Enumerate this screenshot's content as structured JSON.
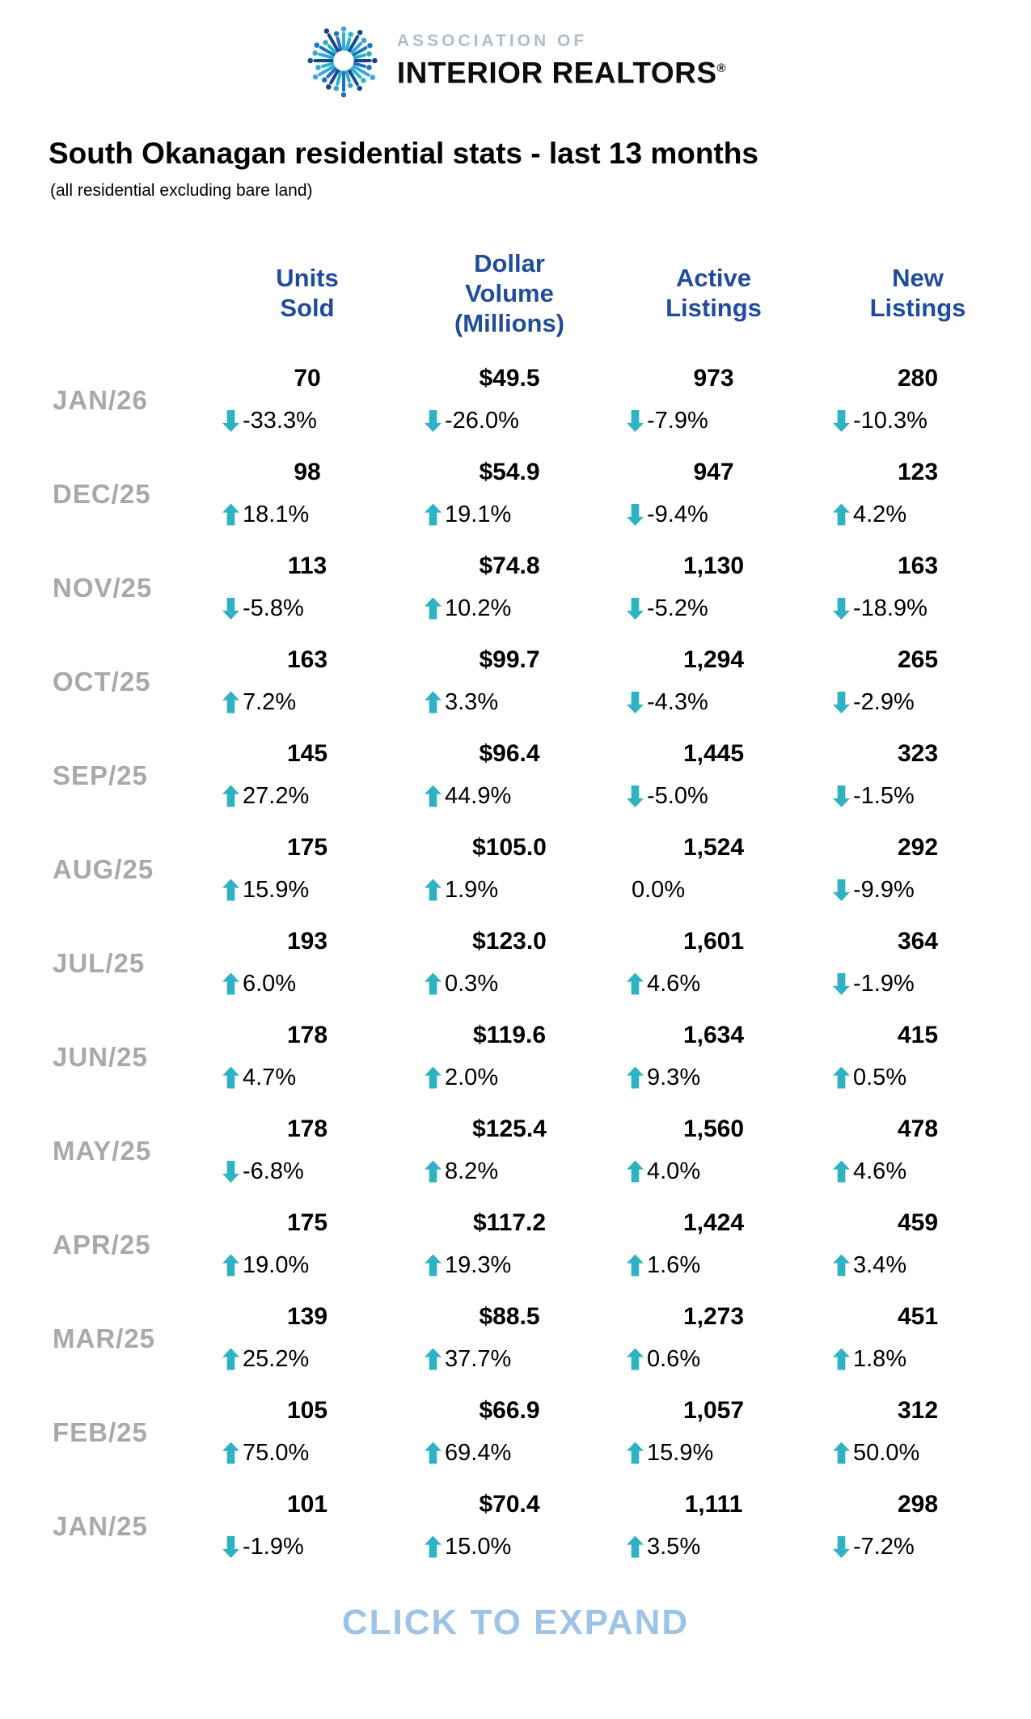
{
  "logo": {
    "association_of": "ASSOCIATION OF",
    "brand": "INTERIOR REALTORS",
    "reg_mark": "®"
  },
  "title": "South Okanagan residential stats - last 13 months",
  "subtitle": "(all residential excluding bare land)",
  "table": {
    "columns": [
      "Units Sold",
      "Dollar Volume (Millions)",
      "Active Listings",
      "New Listings"
    ],
    "rows": [
      {
        "month": "JAN/26",
        "units": {
          "value": "70",
          "dir": "down",
          "change": "-33.3%"
        },
        "volume": {
          "value": "$49.5",
          "dir": "down",
          "change": "-26.0%"
        },
        "active": {
          "value": "973",
          "dir": "down",
          "change": "-7.9%"
        },
        "new": {
          "value": "280",
          "dir": "down",
          "change": "-10.3%"
        }
      },
      {
        "month": "DEC/25",
        "units": {
          "value": "98",
          "dir": "up",
          "change": "18.1%"
        },
        "volume": {
          "value": "$54.9",
          "dir": "up",
          "change": "19.1%"
        },
        "active": {
          "value": "947",
          "dir": "down",
          "change": "-9.4%"
        },
        "new": {
          "value": "123",
          "dir": "up",
          "change": "4.2%"
        }
      },
      {
        "month": "NOV/25",
        "units": {
          "value": "113",
          "dir": "down",
          "change": "-5.8%"
        },
        "volume": {
          "value": "$74.8",
          "dir": "up",
          "change": "10.2%"
        },
        "active": {
          "value": "1,130",
          "dir": "down",
          "change": "-5.2%"
        },
        "new": {
          "value": "163",
          "dir": "down",
          "change": "-18.9%"
        }
      },
      {
        "month": "OCT/25",
        "units": {
          "value": "163",
          "dir": "up",
          "change": "7.2%"
        },
        "volume": {
          "value": "$99.7",
          "dir": "up",
          "change": "3.3%"
        },
        "active": {
          "value": "1,294",
          "dir": "down",
          "change": "-4.3%"
        },
        "new": {
          "value": "265",
          "dir": "down",
          "change": "-2.9%"
        }
      },
      {
        "month": "SEP/25",
        "units": {
          "value": "145",
          "dir": "up",
          "change": "27.2%"
        },
        "volume": {
          "value": "$96.4",
          "dir": "up",
          "change": "44.9%"
        },
        "active": {
          "value": "1,445",
          "dir": "down",
          "change": "-5.0%"
        },
        "new": {
          "value": "323",
          "dir": "down",
          "change": "-1.5%"
        }
      },
      {
        "month": "AUG/25",
        "units": {
          "value": "175",
          "dir": "up",
          "change": "15.9%"
        },
        "volume": {
          "value": "$105.0",
          "dir": "up",
          "change": "1.9%"
        },
        "active": {
          "value": "1,524",
          "dir": "none",
          "change": "0.0%"
        },
        "new": {
          "value": "292",
          "dir": "down",
          "change": "-9.9%"
        }
      },
      {
        "month": "JUL/25",
        "units": {
          "value": "193",
          "dir": "up",
          "change": "6.0%"
        },
        "volume": {
          "value": "$123.0",
          "dir": "up",
          "change": "0.3%"
        },
        "active": {
          "value": "1,601",
          "dir": "up",
          "change": "4.6%"
        },
        "new": {
          "value": "364",
          "dir": "down",
          "change": "-1.9%"
        }
      },
      {
        "month": "JUN/25",
        "units": {
          "value": "178",
          "dir": "up",
          "change": "4.7%"
        },
        "volume": {
          "value": "$119.6",
          "dir": "up",
          "change": "2.0%"
        },
        "active": {
          "value": "1,634",
          "dir": "up",
          "change": "9.3%"
        },
        "new": {
          "value": "415",
          "dir": "up",
          "change": "0.5%"
        }
      },
      {
        "month": "MAY/25",
        "units": {
          "value": "178",
          "dir": "down",
          "change": "-6.8%"
        },
        "volume": {
          "value": "$125.4",
          "dir": "up",
          "change": "8.2%"
        },
        "active": {
          "value": "1,560",
          "dir": "up",
          "change": "4.0%"
        },
        "new": {
          "value": "478",
          "dir": "up",
          "change": "4.6%"
        }
      },
      {
        "month": "APR/25",
        "units": {
          "value": "175",
          "dir": "up",
          "change": "19.0%"
        },
        "volume": {
          "value": "$117.2",
          "dir": "up",
          "change": "19.3%"
        },
        "active": {
          "value": "1,424",
          "dir": "up",
          "change": "1.6%"
        },
        "new": {
          "value": "459",
          "dir": "up",
          "change": "3.4%"
        }
      },
      {
        "month": "MAR/25",
        "units": {
          "value": "139",
          "dir": "up",
          "change": "25.2%"
        },
        "volume": {
          "value": "$88.5",
          "dir": "up",
          "change": "37.7%"
        },
        "active": {
          "value": "1,273",
          "dir": "up",
          "change": "0.6%"
        },
        "new": {
          "value": "451",
          "dir": "up",
          "change": "1.8%"
        }
      },
      {
        "month": "FEB/25",
        "units": {
          "value": "105",
          "dir": "up",
          "change": "75.0%"
        },
        "volume": {
          "value": "$66.9",
          "dir": "up",
          "change": "69.4%"
        },
        "active": {
          "value": "1,057",
          "dir": "up",
          "change": "15.9%"
        },
        "new": {
          "value": "312",
          "dir": "up",
          "change": "50.0%"
        }
      },
      {
        "month": "JAN/25",
        "units": {
          "value": "101",
          "dir": "down",
          "change": "-1.9%"
        },
        "volume": {
          "value": "$70.4",
          "dir": "up",
          "change": "15.0%"
        },
        "active": {
          "value": "1,111",
          "dir": "up",
          "change": "3.5%"
        },
        "new": {
          "value": "298",
          "dir": "down",
          "change": "-7.2%"
        }
      }
    ]
  },
  "footer": {
    "label": "CLICK TO EXPAND"
  },
  "colors": {
    "header_navy": "#1F4C9C",
    "arrow_teal": "#2FB3C4",
    "month_gray": "#A9A9A9",
    "footer_blue": "#9DC3E6",
    "association_gray_blue": "#AEBECB"
  },
  "chart_data": {
    "type": "table",
    "title": "South Okanagan residential stats - last 13 months",
    "subtitle": "(all residential excluding bare land)",
    "columns": [
      "Units Sold",
      "Dollar Volume (Millions)",
      "Active Listings",
      "New Listings"
    ],
    "rows": [
      {
        "month": "JAN/26",
        "units_sold": 70,
        "units_sold_pct": -33.3,
        "dollar_volume_m": 49.5,
        "dollar_volume_pct": -26.0,
        "active_listings": 973,
        "active_listings_pct": -7.9,
        "new_listings": 280,
        "new_listings_pct": -10.3
      },
      {
        "month": "DEC/25",
        "units_sold": 98,
        "units_sold_pct": 18.1,
        "dollar_volume_m": 54.9,
        "dollar_volume_pct": 19.1,
        "active_listings": 947,
        "active_listings_pct": -9.4,
        "new_listings": 123,
        "new_listings_pct": 4.2
      },
      {
        "month": "NOV/25",
        "units_sold": 113,
        "units_sold_pct": -5.8,
        "dollar_volume_m": 74.8,
        "dollar_volume_pct": 10.2,
        "active_listings": 1130,
        "active_listings_pct": -5.2,
        "new_listings": 163,
        "new_listings_pct": -18.9
      },
      {
        "month": "OCT/25",
        "units_sold": 163,
        "units_sold_pct": 7.2,
        "dollar_volume_m": 99.7,
        "dollar_volume_pct": 3.3,
        "active_listings": 1294,
        "active_listings_pct": -4.3,
        "new_listings": 265,
        "new_listings_pct": -2.9
      },
      {
        "month": "SEP/25",
        "units_sold": 145,
        "units_sold_pct": 27.2,
        "dollar_volume_m": 96.4,
        "dollar_volume_pct": 44.9,
        "active_listings": 1445,
        "active_listings_pct": -5.0,
        "new_listings": 323,
        "new_listings_pct": -1.5
      },
      {
        "month": "AUG/25",
        "units_sold": 175,
        "units_sold_pct": 15.9,
        "dollar_volume_m": 105.0,
        "dollar_volume_pct": 1.9,
        "active_listings": 1524,
        "active_listings_pct": 0.0,
        "new_listings": 292,
        "new_listings_pct": -9.9
      },
      {
        "month": "JUL/25",
        "units_sold": 193,
        "units_sold_pct": 6.0,
        "dollar_volume_m": 123.0,
        "dollar_volume_pct": 0.3,
        "active_listings": 1601,
        "active_listings_pct": 4.6,
        "new_listings": 364,
        "new_listings_pct": -1.9
      },
      {
        "month": "JUN/25",
        "units_sold": 178,
        "units_sold_pct": 4.7,
        "dollar_volume_m": 119.6,
        "dollar_volume_pct": 2.0,
        "active_listings": 1634,
        "active_listings_pct": 9.3,
        "new_listings": 415,
        "new_listings_pct": 0.5
      },
      {
        "month": "MAY/25",
        "units_sold": 178,
        "units_sold_pct": -6.8,
        "dollar_volume_m": 125.4,
        "dollar_volume_pct": 8.2,
        "active_listings": 1560,
        "active_listings_pct": 4.0,
        "new_listings": 478,
        "new_listings_pct": 4.6
      },
      {
        "month": "APR/25",
        "units_sold": 175,
        "units_sold_pct": 19.0,
        "dollar_volume_m": 117.2,
        "dollar_volume_pct": 19.3,
        "active_listings": 1424,
        "active_listings_pct": 1.6,
        "new_listings": 459,
        "new_listings_pct": 3.4
      },
      {
        "month": "MAR/25",
        "units_sold": 139,
        "units_sold_pct": 25.2,
        "dollar_volume_m": 88.5,
        "dollar_volume_pct": 37.7,
        "active_listings": 1273,
        "active_listings_pct": 0.6,
        "new_listings": 451,
        "new_listings_pct": 1.8
      },
      {
        "month": "FEB/25",
        "units_sold": 105,
        "units_sold_pct": 75.0,
        "dollar_volume_m": 66.9,
        "dollar_volume_pct": 69.4,
        "active_listings": 1057,
        "active_listings_pct": 15.9,
        "new_listings": 312,
        "new_listings_pct": 50.0
      },
      {
        "month": "JAN/25",
        "units_sold": 101,
        "units_sold_pct": -1.9,
        "dollar_volume_m": 70.4,
        "dollar_volume_pct": 15.0,
        "active_listings": 1111,
        "active_listings_pct": 3.5,
        "new_listings": 298,
        "new_listings_pct": -7.2
      }
    ]
  }
}
